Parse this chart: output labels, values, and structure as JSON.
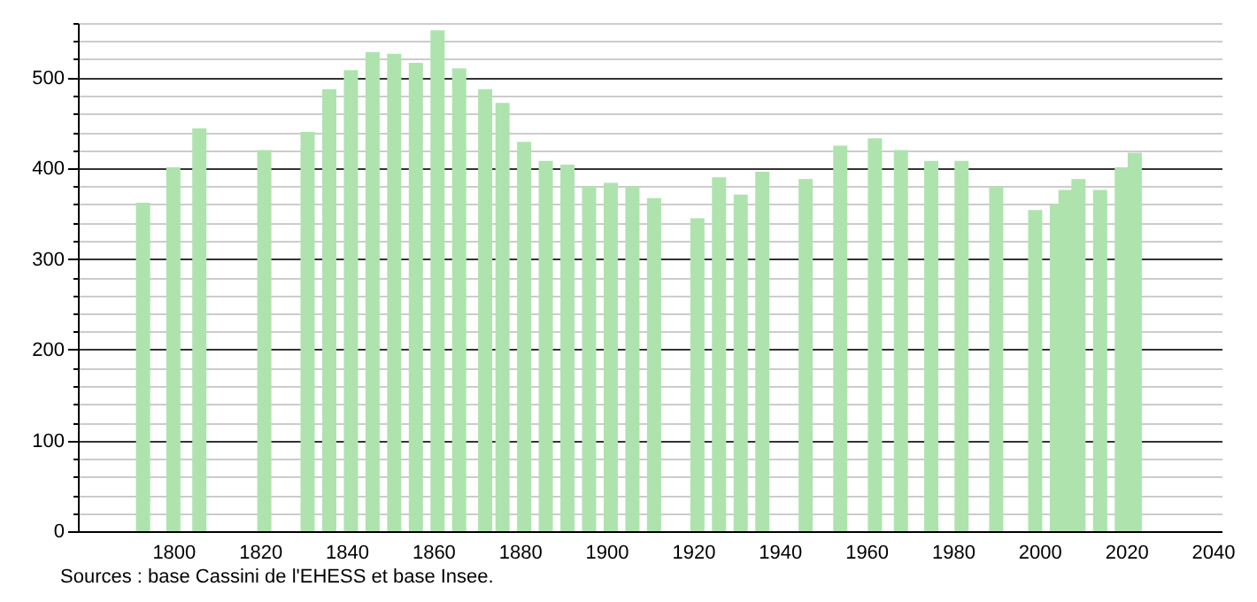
{
  "chart_data": {
    "type": "bar",
    "x": [
      1793,
      1800,
      1806,
      1821,
      1831,
      1836,
      1841,
      1846,
      1851,
      1856,
      1861,
      1866,
      1872,
      1876,
      1881,
      1886,
      1891,
      1896,
      1901,
      1906,
      1911,
      1921,
      1926,
      1931,
      1936,
      1946,
      1954,
      1962,
      1968,
      1975,
      1982,
      1990,
      1999,
      2004,
      2006,
      2009,
      2014,
      2019,
      2022
    ],
    "series": [
      {
        "color": "#aee3ae",
        "values": [
          362,
          401,
          444,
          420,
          440,
          487,
          508,
          528,
          526,
          516,
          552,
          510,
          487,
          472,
          429,
          408,
          404,
          380,
          384,
          380,
          367,
          345,
          390,
          371,
          396,
          388,
          425,
          433,
          420,
          408,
          408,
          380,
          354,
          360,
          376,
          388,
          376,
          401,
          417
        ]
      }
    ],
    "xlim": [
      1780,
      2040
    ],
    "xticks": [
      1800,
      1820,
      1840,
      1860,
      1880,
      1900,
      1920,
      1940,
      1960,
      1980,
      2000,
      2020,
      2040
    ],
    "ylim": [
      0,
      560
    ],
    "yticks": [
      0,
      {
        "value": 20,
        "label": null
      },
      {
        "value": 40,
        "label": null
      },
      {
        "value": 60,
        "label": null
      },
      {
        "value": 80,
        "label": null
      },
      100,
      {
        "value": 120,
        "label": null
      },
      {
        "value": 140,
        "label": null
      },
      {
        "value": 160,
        "label": null
      },
      {
        "value": 180,
        "label": null
      },
      200,
      {
        "value": 220,
        "label": null
      },
      {
        "value": 240,
        "label": null
      },
      {
        "value": 260,
        "label": null
      },
      {
        "value": 280,
        "label": null
      },
      300,
      {
        "value": 320,
        "label": null
      },
      {
        "value": 340,
        "label": null
      },
      {
        "value": 360,
        "label": null
      },
      {
        "value": 380,
        "label": null
      },
      400,
      {
        "value": 420,
        "label": null
      },
      {
        "value": 440,
        "label": null
      },
      {
        "value": 460,
        "label": null
      },
      {
        "value": 480,
        "label": null
      },
      500,
      {
        "value": 520,
        "label": null
      },
      {
        "value": 540,
        "label": null
      },
      {
        "value": 560,
        "label": null
      }
    ],
    "grid": "y",
    "annotations": [
      "Sources : base Cassini de l'EHESS et base Insee."
    ]
  }
}
